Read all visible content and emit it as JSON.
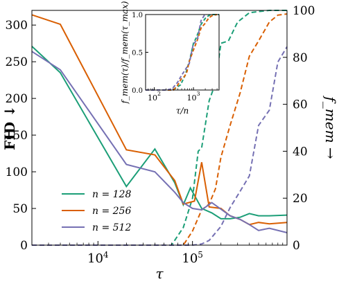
{
  "chart_data": {
    "type": "line",
    "xscale": "log",
    "xlim": [
      2000,
      1000000
    ],
    "ylim_left": [
      0,
      320
    ],
    "ylim_right": [
      0,
      100
    ],
    "xlabel": "τ",
    "ylabel_left": "FID ↓",
    "ylabel_right": "f_mem →",
    "x_ticks": [
      {
        "value": 10000,
        "base": "10",
        "exp": "4"
      },
      {
        "value": 100000,
        "base": "10",
        "exp": "5"
      }
    ],
    "y_left_ticks": [
      0,
      50,
      100,
      150,
      200,
      250,
      300
    ],
    "y_right_ticks": [
      0,
      20,
      40,
      60,
      80,
      100
    ],
    "legend": {
      "position": "lower-left",
      "entries": [
        "n = 128",
        "n = 256",
        "n = 512"
      ]
    },
    "colors": {
      "n128": "#1b9e77",
      "n256": "#d95f02",
      "n512": "#7570b3"
    },
    "series_fid": [
      {
        "name": "n = 128",
        "color": "#1b9e77",
        "x": [
          2000,
          4000,
          20000,
          40000,
          65000,
          80000,
          95000,
          125000,
          160000,
          200000,
          250000,
          320000,
          400000,
          500000,
          650000,
          1000000
        ],
        "y": [
          271,
          235,
          80,
          131,
          85,
          55,
          78,
          50,
          44,
          36,
          36,
          38,
          43,
          40,
          40,
          41
        ]
      },
      {
        "name": "n = 256",
        "color": "#d95f02",
        "x": [
          2000,
          4000,
          20000,
          40000,
          65000,
          80000,
          105000,
          125000,
          150000,
          200000,
          250000,
          320000,
          400000,
          500000,
          650000,
          1000000
        ],
        "y": [
          314,
          301,
          130,
          123,
          88,
          56,
          60,
          113,
          52,
          50,
          40,
          35,
          28,
          31,
          29,
          31
        ]
      },
      {
        "name": "n = 512",
        "color": "#7570b3",
        "x": [
          2000,
          4000,
          20000,
          40000,
          65000,
          80000,
          100000,
          125000,
          160000,
          200000,
          250000,
          320000,
          400000,
          500000,
          650000,
          1000000
        ],
        "y": [
          264,
          239,
          110,
          100,
          72,
          58,
          50,
          48,
          58,
          49,
          40,
          35,
          28,
          20,
          23,
          17
        ]
      }
    ],
    "series_fmem": [
      {
        "name": "n = 128",
        "color": "#1b9e77",
        "x": [
          2000,
          20000,
          40000,
          60000,
          80000,
          100000,
          115000,
          125000,
          150000,
          175000,
          200000,
          240000,
          300000,
          400000,
          500000,
          650000,
          1000000
        ],
        "y": [
          0,
          0,
          0,
          0,
          7.5,
          20,
          40,
          41.5,
          61.5,
          69,
          86,
          87,
          95,
          99,
          99.5,
          100,
          100
        ]
      },
      {
        "name": "n = 256",
        "color": "#d95f02",
        "x": [
          2000,
          60000,
          80000,
          100000,
          125000,
          150000,
          175000,
          200000,
          250000,
          320000,
          400000,
          500000,
          650000,
          800000,
          1000000
        ],
        "y": [
          0,
          0,
          0,
          6,
          15,
          17.5,
          24,
          37.5,
          51,
          65,
          80.5,
          87,
          95,
          98,
          98.5
        ]
      },
      {
        "name": "n = 512",
        "color": "#7570b3",
        "x": [
          2000,
          100000,
          125000,
          150000,
          200000,
          250000,
          320000,
          400000,
          500000,
          650000,
          800000,
          1000000
        ],
        "y": [
          0,
          0,
          0.5,
          2,
          8,
          16,
          23,
          29.5,
          51,
          57.5,
          78,
          84.5
        ]
      }
    ],
    "inset": {
      "xscale": "log",
      "xlim": [
        60,
        4500
      ],
      "ylim": [
        0,
        1
      ],
      "xlabel": "τ/n",
      "ylabel": "f_mem(τ)/f_mem(τ_max)",
      "x_ticks": [
        {
          "value": 100,
          "base": "10",
          "exp": "2"
        },
        {
          "value": 1000,
          "base": "10",
          "exp": "3"
        }
      ],
      "y_ticks": [
        "0.0",
        "0.5",
        "1.0"
      ],
      "series": [
        {
          "name": "n = 128",
          "color": "#1b9e77",
          "x": [
            60,
            160,
            300,
            470,
            620,
            800,
            1000,
            1200,
            1560,
            2000,
            2500,
            3100,
            4500
          ],
          "y": [
            0,
            0,
            0,
            0.07,
            0.2,
            0.4,
            0.62,
            0.7,
            0.87,
            0.95,
            0.99,
            1.0,
            1.0
          ]
        },
        {
          "name": "n = 256",
          "color": "#d95f02",
          "x": [
            60,
            230,
            310,
            390,
            490,
            590,
            680,
            780,
            980,
            1250,
            1560,
            1950,
            2500,
            3100,
            4000
          ],
          "y": [
            0,
            0,
            0,
            0.06,
            0.15,
            0.18,
            0.24,
            0.38,
            0.52,
            0.66,
            0.82,
            0.88,
            0.96,
            0.99,
            1.0
          ]
        },
        {
          "name": "n = 512",
          "color": "#7570b3",
          "x": [
            60,
            200,
            250,
            290,
            390,
            490,
            620,
            780,
            980,
            1270,
            1560,
            1950
          ],
          "y": [
            0,
            0,
            0.01,
            0.02,
            0.1,
            0.19,
            0.27,
            0.35,
            0.6,
            0.68,
            0.92,
            1.0
          ]
        }
      ]
    }
  }
}
